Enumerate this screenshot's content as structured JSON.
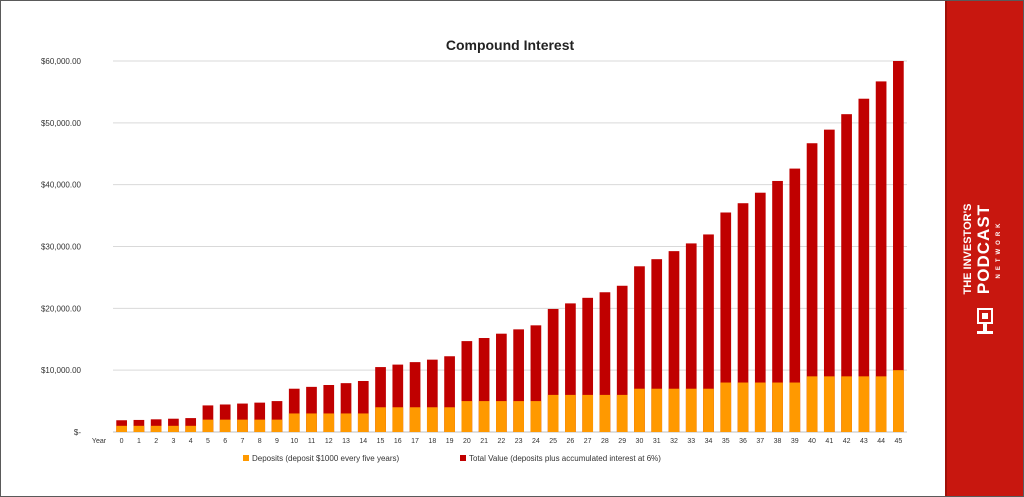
{
  "chart_data": {
    "type": "bar",
    "stacked": false,
    "title": "Compound Interest",
    "x_axis_label": "Year",
    "categories": [
      "0",
      "1",
      "2",
      "3",
      "4",
      "5",
      "6",
      "7",
      "8",
      "9",
      "10",
      "11",
      "12",
      "13",
      "14",
      "15",
      "16",
      "17",
      "18",
      "19",
      "20",
      "21",
      "22",
      "23",
      "24",
      "25",
      "26",
      "27",
      "28",
      "29",
      "30",
      "31",
      "32",
      "33",
      "34",
      "35",
      "36",
      "37",
      "38",
      "39",
      "40",
      "41",
      "42",
      "43",
      "44",
      "45"
    ],
    "y_tick_labels": [
      "$-",
      "$10,000.00",
      "$20,000.00",
      "$30,000.00",
      "$40,000.00",
      "$50,000.00",
      "$60,000.00"
    ],
    "y_tick_values": [
      0,
      10000,
      20000,
      30000,
      40000,
      50000,
      60000
    ],
    "ylim": [
      0,
      60000
    ],
    "grid": true,
    "legend_position": "bottom",
    "series": [
      {
        "name": "Total Value (deposits plus accumulated interest at 6%)",
        "color": "#c00000",
        "values": [
          1900,
          1950,
          2050,
          2150,
          2250,
          4300,
          4450,
          4600,
          4750,
          5000,
          7000,
          7300,
          7600,
          7900,
          8250,
          10500,
          10900,
          11300,
          11700,
          12250,
          14700,
          15200,
          15900,
          16600,
          17250,
          19900,
          20800,
          21700,
          22600,
          23650,
          26800,
          27950,
          29250,
          30500,
          31950,
          35500,
          37000,
          38700,
          40600,
          42600,
          46700,
          48900,
          51400,
          53900,
          56700,
          60000
        ]
      },
      {
        "name": "Deposits (deposit $1000 every five years)",
        "color": "#ff9900",
        "values": [
          1000,
          1000,
          1000,
          1000,
          1000,
          2000,
          2000,
          2000,
          2000,
          2000,
          3000,
          3000,
          3000,
          3000,
          3000,
          4000,
          4000,
          4000,
          4000,
          4000,
          5000,
          5000,
          5000,
          5000,
          5000,
          6000,
          6000,
          6000,
          6000,
          6000,
          7000,
          7000,
          7000,
          7000,
          7000,
          8000,
          8000,
          8000,
          8000,
          8000,
          9000,
          9000,
          9000,
          9000,
          9000,
          10000
        ]
      }
    ],
    "legend": [
      {
        "label": "Deposits (deposit $1000 every five years)",
        "color": "#ff9900"
      },
      {
        "label": "Total Value (deposits plus accumulated interest at 6%)",
        "color": "#c00000"
      }
    ]
  },
  "sidebar": {
    "background": "#c8170f",
    "logo": {
      "line1": "THE INVESTOR'S",
      "line2": "PODCAST",
      "line3": "NETWORK"
    }
  }
}
